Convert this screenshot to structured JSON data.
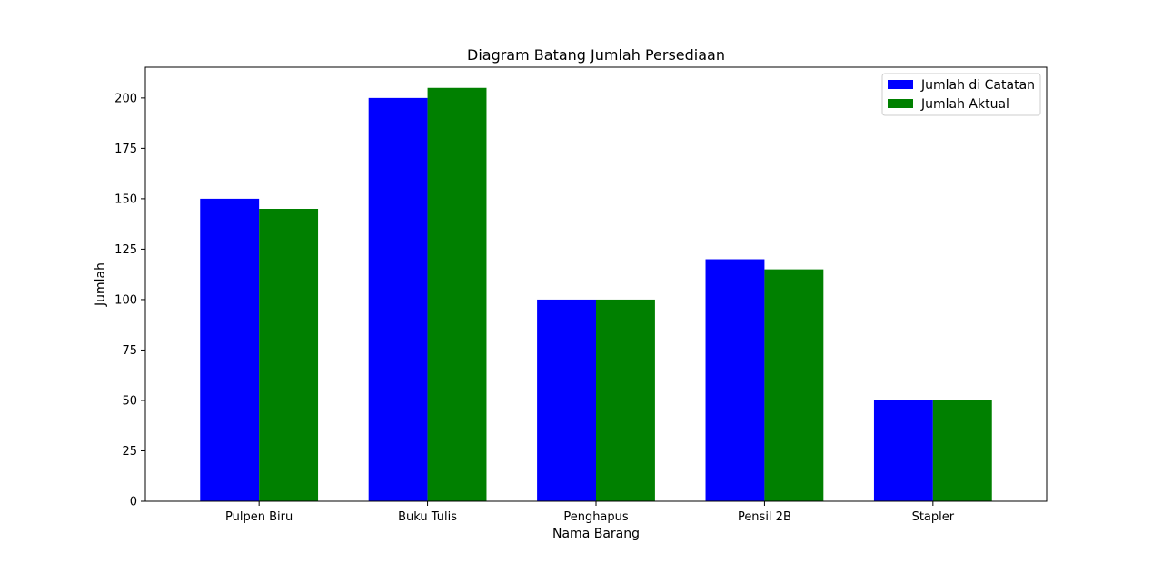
{
  "chart_data": {
    "type": "bar",
    "title": "Diagram Batang Jumlah Persediaan",
    "xlabel": "Nama Barang",
    "ylabel": "Jumlah",
    "categories": [
      "Pulpen Biru",
      "Buku Tulis",
      "Penghapus",
      "Pensil 2B",
      "Stapler"
    ],
    "series": [
      {
        "name": "Jumlah di Catatan",
        "color": "#0000ff",
        "values": [
          150,
          200,
          100,
          120,
          50
        ]
      },
      {
        "name": "Jumlah Aktual",
        "color": "#008000",
        "values": [
          145,
          205,
          100,
          115,
          50
        ]
      }
    ],
    "ylim": [
      0,
      215.25
    ],
    "yticks": [
      0,
      25,
      50,
      75,
      100,
      125,
      150,
      175,
      200
    ],
    "legend_position": "top-right",
    "grid": false
  }
}
